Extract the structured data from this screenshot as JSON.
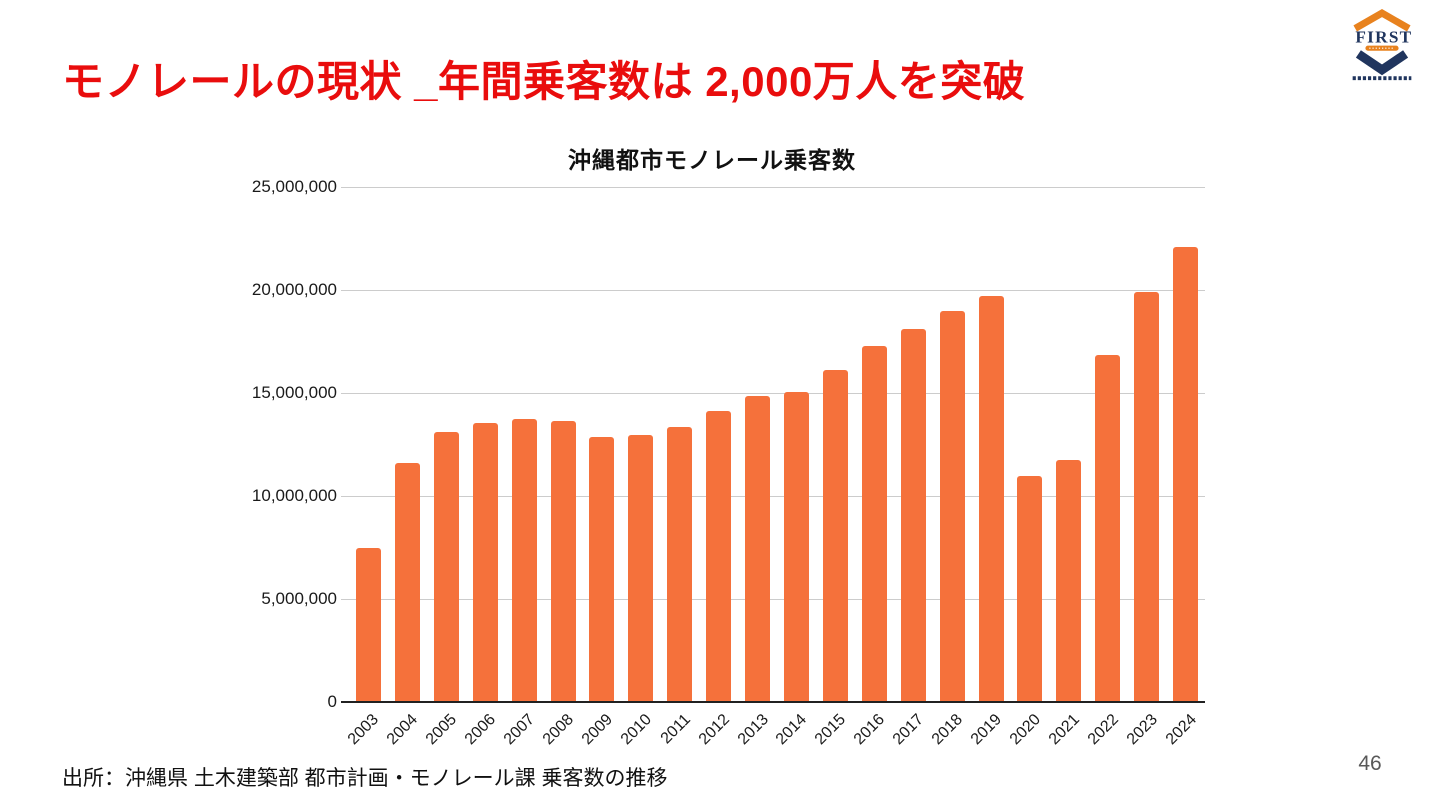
{
  "slide": {
    "title": "モノレールの現状 _年間乗客数は 2,000万人を突破",
    "source": "出所：沖縄県 土木建築部 都市計画・モノレール課 乗客数の推移",
    "page_number": "46"
  },
  "logo": {
    "text": "FIRST",
    "roof_color": "#E8821E",
    "navy_color": "#20355E"
  },
  "colors": {
    "title_red": "#E90D0D",
    "bar_orange": "#F5713B",
    "gridline_gray": "#CCCCCC",
    "axis_dark": "#212121",
    "page_gray": "#595959"
  },
  "chart_data": {
    "type": "bar",
    "title": "沖縄都市モノレール乗客数",
    "categories": [
      "2003",
      "2004",
      "2005",
      "2006",
      "2007",
      "2008",
      "2009",
      "2010",
      "2011",
      "2012",
      "2013",
      "2014",
      "2015",
      "2016",
      "2017",
      "2018",
      "2019",
      "2020",
      "2021",
      "2022",
      "2023",
      "2024"
    ],
    "values": [
      7500000,
      11600000,
      13100000,
      13550000,
      13750000,
      13650000,
      12850000,
      12950000,
      13350000,
      14150000,
      14850000,
      15050000,
      16100000,
      17300000,
      18100000,
      19000000,
      19700000,
      10950000,
      11750000,
      16850000,
      19900000,
      22100000
    ],
    "xlabel": "",
    "ylabel": "",
    "ylim": [
      0,
      25000000
    ],
    "ytick_interval": 5000000,
    "ytick_labels": [
      "0",
      "5,000,000",
      "10,000,000",
      "15,000,000",
      "20,000,000",
      "25,000,000"
    ],
    "grid": true,
    "legend": false,
    "bar_color": "#F5713B"
  }
}
